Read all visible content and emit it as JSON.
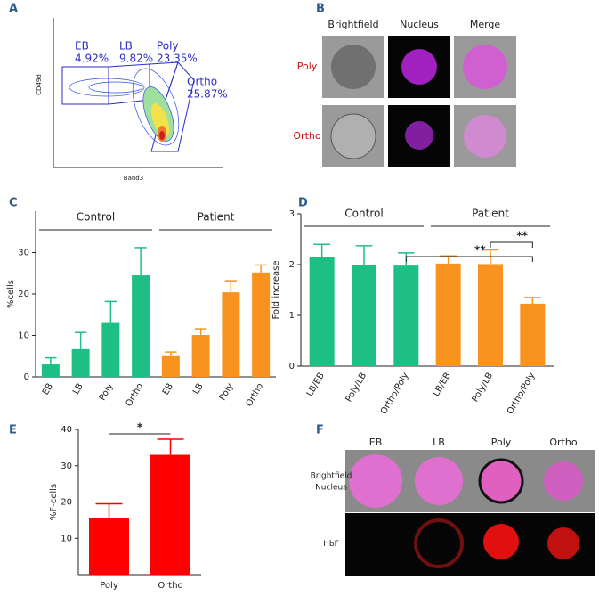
{
  "panel_letters": [
    "A",
    "B",
    "C",
    "D",
    "E",
    "F"
  ],
  "panel_a": {
    "y_label": "CD49d",
    "x_label": "Band3",
    "gates": [
      {
        "name": "EB",
        "percent": "4.92%"
      },
      {
        "name": "LB",
        "percent": "9.82%"
      },
      {
        "name": "Poly",
        "percent": "23.35%"
      },
      {
        "name": "Ortho",
        "percent": "25.87%"
      }
    ]
  },
  "panel_b": {
    "columns": [
      "Brightfield",
      "Nucleus",
      "Merge"
    ],
    "rows": [
      "Poly",
      "Ortho"
    ]
  },
  "panel_f": {
    "columns": [
      "EB",
      "LB",
      "Poly",
      "Ortho"
    ],
    "rows": [
      "Brightfield\nNucleus",
      "HbF"
    ]
  },
  "chart_data": [
    {
      "type": "bar",
      "y_label": "%cells",
      "ylim": [
        0,
        40
      ],
      "yticks": [
        0,
        10,
        20,
        30
      ],
      "groups": [
        {
          "name": "Control",
          "color": "#1dbf84",
          "categories": [
            "EB",
            "LB",
            "Poly",
            "Ortho"
          ],
          "values": [
            3,
            6.7,
            13,
            24.5
          ],
          "errors": [
            1.6,
            4,
            5.2,
            6.7
          ]
        },
        {
          "name": "Patient",
          "color": "#f7931e",
          "categories": [
            "EB",
            "LB",
            "Poly",
            "Ortho"
          ],
          "values": [
            5,
            10.1,
            20.4,
            25.2
          ],
          "errors": [
            1,
            1.5,
            2.8,
            1.8
          ]
        }
      ]
    },
    {
      "type": "bar",
      "y_label": "Fold increase",
      "ylim": [
        0,
        3
      ],
      "yticks": [
        0,
        1,
        2,
        3
      ],
      "annotations": [
        "**",
        "**"
      ],
      "groups": [
        {
          "name": "Control",
          "color": "#1dbf84",
          "categories": [
            "LB/EB",
            "Poly/LB",
            "Ortho/Poly"
          ],
          "values": [
            2.15,
            2.0,
            1.98
          ],
          "errors": [
            0.25,
            0.37,
            0.25
          ]
        },
        {
          "name": "Patient",
          "color": "#f7931e",
          "categories": [
            "LB/EB",
            "Poly/LB",
            "Ortho/Poly"
          ],
          "values": [
            2.02,
            2.01,
            1.23
          ],
          "errors": [
            0.15,
            0.28,
            0.12
          ]
        }
      ]
    },
    {
      "type": "bar",
      "y_label": "%F-cells",
      "ylim": [
        0,
        40
      ],
      "yticks": [
        10,
        20,
        30,
        40
      ],
      "annotations": [
        "*"
      ],
      "groups": [
        {
          "color": "#ff0000",
          "categories": [
            "Poly",
            "Ortho"
          ],
          "values": [
            15.5,
            33
          ],
          "errors": [
            4,
            4.3
          ]
        }
      ]
    }
  ]
}
